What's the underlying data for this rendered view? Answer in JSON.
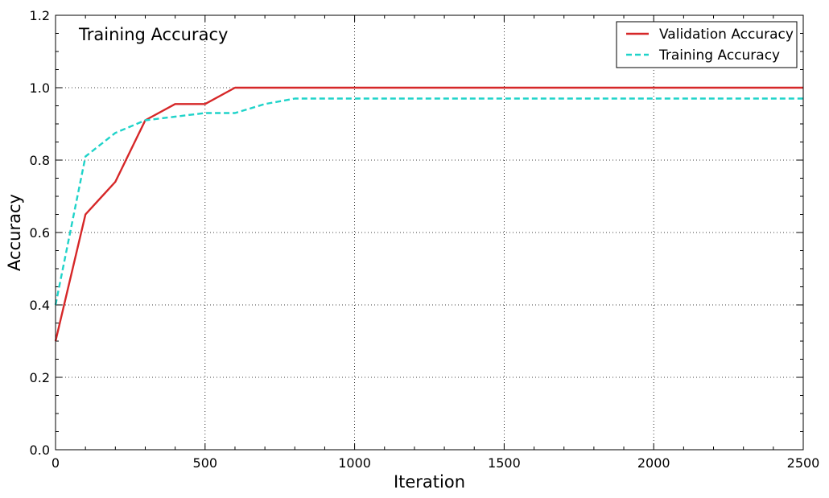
{
  "chart_data": {
    "type": "line",
    "title": "Training Accuracy",
    "xlabel": "Iteration",
    "ylabel": "Accuracy",
    "xlim": [
      0,
      2500
    ],
    "ylim": [
      0.0,
      1.2
    ],
    "xticks": [
      0,
      500,
      1000,
      1500,
      2000,
      2500
    ],
    "xtick_labels": [
      "0",
      "500",
      "1000",
      "1500",
      "2000",
      "2500"
    ],
    "yticks": [
      0.0,
      0.2,
      0.4,
      0.6,
      0.8,
      1.0,
      1.2
    ],
    "ytick_labels": [
      "0.0",
      "0.2",
      "0.4",
      "0.6",
      "0.8",
      "1.0",
      "1.2"
    ],
    "grid": true,
    "legend_position": "top-right",
    "series": [
      {
        "name": "Validation Accuracy",
        "color": "#d62728",
        "style": "solid",
        "x": [
          0,
          100,
          200,
          300,
          400,
          500,
          600,
          700,
          800,
          900,
          1000,
          1100,
          1200,
          1300,
          1400,
          1500,
          1600,
          1700,
          1800,
          1900,
          2000,
          2100,
          2200,
          2300,
          2400,
          2500
        ],
        "y": [
          0.3,
          0.65,
          0.74,
          0.91,
          0.955,
          0.955,
          1.0,
          1.0,
          1.0,
          1.0,
          1.0,
          1.0,
          1.0,
          1.0,
          1.0,
          1.0,
          1.0,
          1.0,
          1.0,
          1.0,
          1.0,
          1.0,
          1.0,
          1.0,
          1.0,
          1.0
        ]
      },
      {
        "name": "Training Accuracy",
        "color": "#1fd3c9",
        "style": "dashed",
        "x": [
          0,
          100,
          200,
          300,
          400,
          500,
          600,
          700,
          800,
          900,
          1000,
          1100,
          1200,
          1300,
          1400,
          1500,
          1600,
          1700,
          1800,
          1900,
          2000,
          2100,
          2200,
          2300,
          2400,
          2500
        ],
        "y": [
          0.4,
          0.81,
          0.875,
          0.91,
          0.92,
          0.93,
          0.93,
          0.955,
          0.97,
          0.97,
          0.97,
          0.97,
          0.97,
          0.97,
          0.97,
          0.97,
          0.97,
          0.97,
          0.97,
          0.97,
          0.97,
          0.97,
          0.97,
          0.97,
          0.97,
          0.97
        ]
      }
    ]
  }
}
